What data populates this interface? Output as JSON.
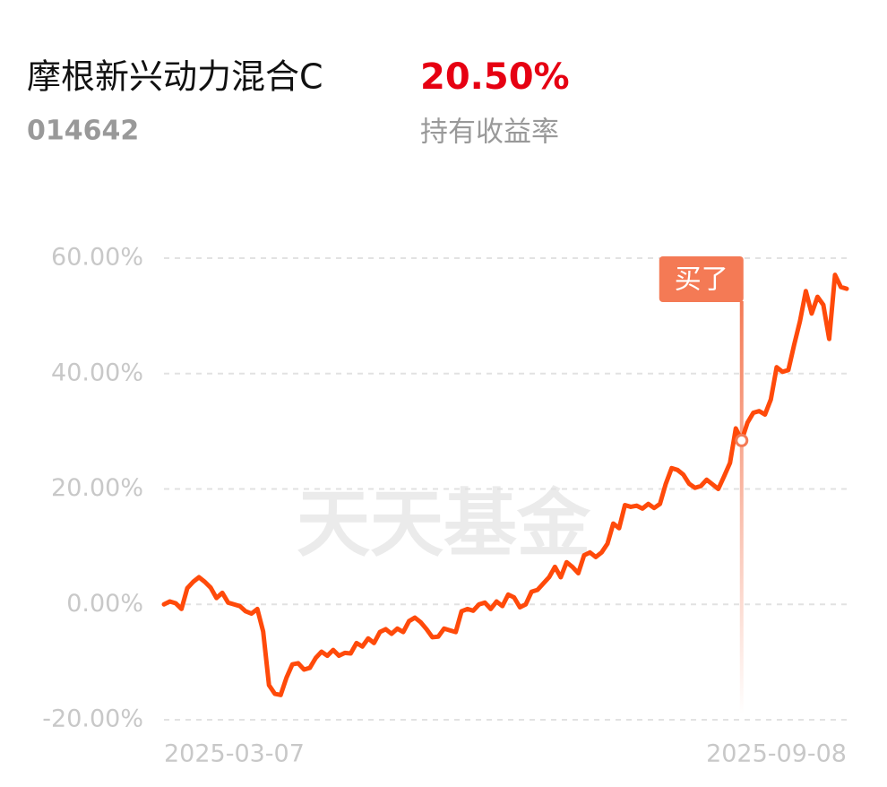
{
  "header": {
    "name": "摩根新兴动力混合C",
    "code": "014642",
    "return": "20.50%",
    "return_label": "持有收益率"
  },
  "chart_data": {
    "type": "line",
    "watermark": "天天基金",
    "annotation": "买了",
    "grid": true,
    "ylim": [
      -20,
      60
    ],
    "yticks": [
      {
        "value": -20,
        "label": "-20.00%"
      },
      {
        "value": 0,
        "label": "0.00%"
      },
      {
        "value": 20,
        "label": "20.00%"
      },
      {
        "value": 40,
        "label": "40.00%"
      },
      {
        "value": 60,
        "label": "60.00%"
      }
    ],
    "categories": [
      "2025-03-07",
      null,
      null,
      null,
      null,
      null,
      null,
      null,
      null,
      null,
      null,
      null,
      null,
      null,
      null,
      null,
      null,
      null,
      null,
      null,
      null,
      null,
      null,
      null,
      null,
      null,
      null,
      null,
      null,
      null,
      null,
      null,
      null,
      null,
      null,
      null,
      null,
      null,
      null,
      null,
      null,
      null,
      null,
      null,
      null,
      null,
      null,
      null,
      null,
      null,
      null,
      null,
      null,
      null,
      null,
      null,
      null,
      null,
      null,
      null,
      null,
      null,
      null,
      null,
      null,
      null,
      null,
      null,
      null,
      null,
      null,
      null,
      null,
      null,
      null,
      null,
      null,
      null,
      null,
      null,
      null,
      null,
      null,
      null,
      null,
      null,
      null,
      null,
      null,
      null,
      null,
      null,
      null,
      null,
      null,
      null,
      null,
      null,
      null,
      null,
      null,
      null,
      null,
      null,
      null,
      null,
      null,
      null,
      null,
      null,
      null,
      null,
      null,
      null,
      null,
      null,
      null,
      "2025-09-08"
    ],
    "series": [
      {
        "color": "#ff4a0a",
        "values": [
          0,
          0.5,
          0.2,
          -0.8,
          2.8,
          3.9,
          4.7,
          3.9,
          2.9,
          1.1,
          2.0,
          0.3,
          0,
          -0.3,
          -1.2,
          -1.6,
          -0.8,
          -4.7,
          -14,
          -15.5,
          -15.7,
          -12.7,
          -10.4,
          -10.2,
          -11.3,
          -11,
          -9.3,
          -8.2,
          -8.9,
          -7.9,
          -8.9,
          -8.4,
          -8.5,
          -6.7,
          -7.3,
          -5.9,
          -6.7,
          -4.8,
          -4.3,
          -5.1,
          -4.2,
          -4.8,
          -2.9,
          -2.3,
          -3.1,
          -4.3,
          -5.7,
          -5.6,
          -4.2,
          -4.5,
          -4.8,
          -1.2,
          -0.8,
          -1.1,
          0,
          0.3,
          -0.8,
          0.5,
          -0.3,
          1.7,
          1.2,
          -0.5,
          0,
          2.2,
          2.5,
          3.6,
          4.7,
          6.5,
          4.7,
          7.3,
          6.5,
          5.4,
          8.5,
          9.0,
          8.2,
          9.0,
          10.5,
          14.0,
          13.2,
          17.2,
          16.9,
          17.1,
          16.6,
          17.4,
          16.7,
          17.4,
          20.9,
          23.6,
          23.3,
          22.5,
          20.9,
          20.2,
          20.5,
          21.6,
          20.8,
          20.0,
          22.2,
          24.5,
          30.5,
          28.4,
          31.5,
          33.2,
          33.5,
          32.9,
          35.5,
          41.1,
          40.3,
          40.6,
          45.0,
          49.1,
          54.3,
          50.4,
          53.3,
          51.9,
          46.0,
          57.1,
          55.0,
          54.7
        ]
      }
    ]
  }
}
